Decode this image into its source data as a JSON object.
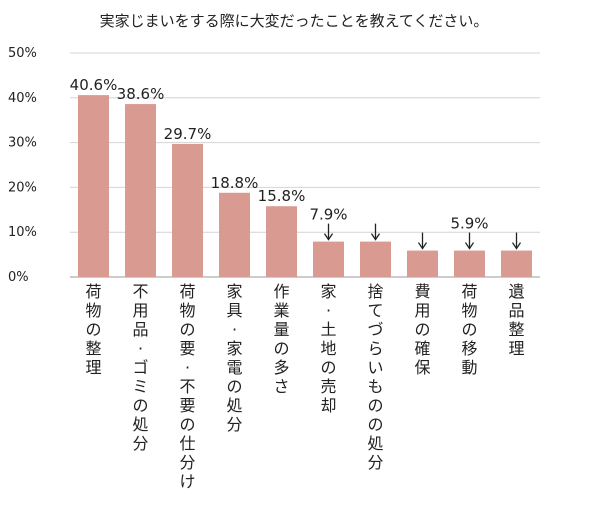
{
  "chart_data": {
    "type": "bar",
    "title": "実家じまいをする際に大変だったことを教えてください。",
    "xlabel": "",
    "ylabel": "",
    "ylim": [
      0,
      50
    ],
    "yticks": [
      "0%",
      "10%",
      "20%",
      "30%",
      "40%",
      "50%"
    ],
    "grid": true,
    "legend": "none",
    "bar_color": "#d99a92",
    "categories": [
      "荷物の整理",
      "不用品・ゴミの処分",
      "荷物の要・不要の仕分け",
      "家具・家電の処分",
      "作業量の多さ",
      "家・土地の売却",
      "捨てづらいものの処分",
      "費用の確保",
      "荷物の移動",
      "遺品整理"
    ],
    "values": [
      40.6,
      38.6,
      29.7,
      18.8,
      15.8,
      7.9,
      7.9,
      5.9,
      5.9,
      5.9
    ],
    "data_labels": [
      "40.6%",
      "38.6%",
      "29.7%",
      "18.8%",
      "15.8%",
      "7.9%",
      "",
      "",
      "5.9%",
      ""
    ],
    "arrow_markers": [
      false,
      false,
      false,
      false,
      false,
      true,
      true,
      true,
      true,
      true
    ]
  }
}
